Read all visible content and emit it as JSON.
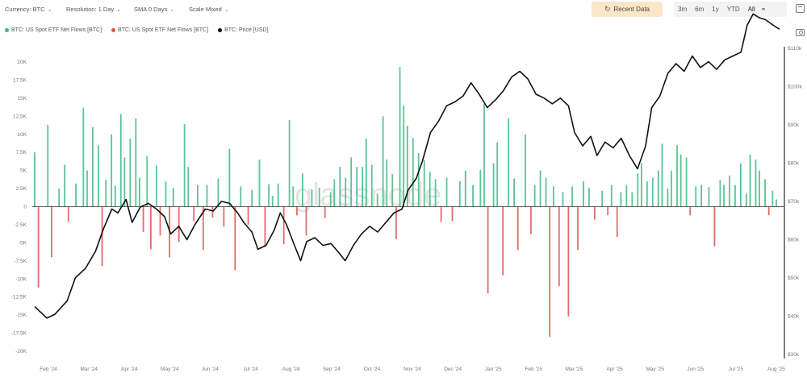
{
  "toolbar": {
    "currency": "Currency: BTC",
    "resolution": "Resolution: 1 Day",
    "sma": "SMA 0 Days",
    "scale": "Scale Mixed",
    "recent_data": "Recent Data",
    "ranges": [
      "3m",
      "6m",
      "1y",
      "YTD",
      "All"
    ]
  },
  "watermark": "glassnode",
  "colors": {
    "inflow": "#3fb886",
    "outflow": "#d9534f",
    "price": "#111111",
    "zero_line": "#333333",
    "recent_btn": "#fbe7c7"
  },
  "chart_data": {
    "type": "bar",
    "legend_placement": "top-left",
    "grid": false,
    "series": [
      {
        "name": "BTC: US Spot ETF Net Flows [BTC]",
        "kind": "bar",
        "sign": "positive"
      },
      {
        "name": "BTC: US Spot ETF Net Flows [BTC]",
        "kind": "bar",
        "sign": "negative"
      },
      {
        "name": "BTC: Price [USD]",
        "kind": "line",
        "axis": "right"
      }
    ],
    "x_ticks": [
      "Feb '24",
      "Mar '24",
      "Apr '24",
      "May '24",
      "Jun '24",
      "Jul '24",
      "Aug '24",
      "Sep '24",
      "Oct '24",
      "Nov '24",
      "Dec '24",
      "Jan '25",
      "Feb '25",
      "Mar '25",
      "Apr '25",
      "May '25",
      "Jun '25",
      "Jul '25",
      "Aug '25"
    ],
    "y_left": {
      "ylim": [
        -30000,
        20000
      ],
      "ticks": [
        20000,
        17500,
        15000,
        12500,
        10000,
        7500,
        5000,
        2500,
        0,
        -2500,
        -5000,
        -7500,
        -10000,
        -12500,
        -15000,
        -17500,
        -20000
      ],
      "tick_labels": [
        "20K",
        "17.5K",
        "15K",
        "12.5K",
        "10K",
        "7.5K",
        "5K",
        "2.5K",
        "0",
        "-2.5K",
        "-5K",
        "-7.5K",
        "-10K",
        "-12.5K",
        "-15K",
        "-17.5K",
        "-20K"
      ]
    },
    "y_right": {
      "ticks": [
        110000,
        100000,
        90000,
        80000,
        70000,
        60000,
        50000,
        40000,
        30000
      ],
      "tick_labels": [
        "$110k",
        "$100k",
        "$90k",
        "$80k",
        "$70k",
        "$60k",
        "$50k",
        "$40k",
        "$30k"
      ]
    },
    "flows": [
      {
        "x": 0.2,
        "v": 7500
      },
      {
        "x": 0.3,
        "v": -11200
      },
      {
        "x": 0.55,
        "v": 11300
      },
      {
        "x": 0.65,
        "v": -7000
      },
      {
        "x": 0.85,
        "v": 2500
      },
      {
        "x": 1.0,
        "v": 5800
      },
      {
        "x": 1.1,
        "v": -2100
      },
      {
        "x": 1.3,
        "v": 3200
      },
      {
        "x": 1.5,
        "v": 13700
      },
      {
        "x": 1.6,
        "v": 5000
      },
      {
        "x": 1.75,
        "v": 11000
      },
      {
        "x": 1.9,
        "v": 8500
      },
      {
        "x": 2.0,
        "v": -8200
      },
      {
        "x": 2.1,
        "v": 3700
      },
      {
        "x": 2.25,
        "v": 10000
      },
      {
        "x": 2.35,
        "v": 2900
      },
      {
        "x": 2.5,
        "v": 12800
      },
      {
        "x": 2.6,
        "v": 6800
      },
      {
        "x": 2.75,
        "v": 9400
      },
      {
        "x": 2.9,
        "v": 12200
      },
      {
        "x": 3.0,
        "v": 4000
      },
      {
        "x": 3.1,
        "v": -3500
      },
      {
        "x": 3.2,
        "v": 7000
      },
      {
        "x": 3.3,
        "v": -5900
      },
      {
        "x": 3.45,
        "v": 5700
      },
      {
        "x": 3.55,
        "v": -4000
      },
      {
        "x": 3.7,
        "v": 3500
      },
      {
        "x": 3.8,
        "v": -7000
      },
      {
        "x": 3.9,
        "v": 2600
      },
      {
        "x": 4.05,
        "v": -4900
      },
      {
        "x": 4.2,
        "v": 11400
      },
      {
        "x": 4.3,
        "v": 5500
      },
      {
        "x": 4.45,
        "v": -2000
      },
      {
        "x": 4.55,
        "v": 3000
      },
      {
        "x": 4.7,
        "v": -6000
      },
      {
        "x": 4.8,
        "v": 3000
      },
      {
        "x": 4.95,
        "v": -1500
      },
      {
        "x": 5.1,
        "v": 3900
      },
      {
        "x": 5.25,
        "v": -2800
      },
      {
        "x": 5.4,
        "v": 8000
      },
      {
        "x": 5.55,
        "v": -8800
      },
      {
        "x": 5.7,
        "v": 2800
      },
      {
        "x": 5.9,
        "v": -2500
      },
      {
        "x": 6.0,
        "v": 2300
      },
      {
        "x": 6.2,
        "v": 6500
      },
      {
        "x": 6.35,
        "v": -5600
      },
      {
        "x": 6.45,
        "v": 3100
      },
      {
        "x": 6.55,
        "v": 1500
      },
      {
        "x": 6.7,
        "v": 3200
      },
      {
        "x": 6.85,
        "v": -5200
      },
      {
        "x": 7.0,
        "v": 12000
      },
      {
        "x": 7.1,
        "v": 2800
      },
      {
        "x": 7.2,
        "v": -1200
      },
      {
        "x": 7.35,
        "v": 4600
      },
      {
        "x": 7.45,
        "v": -4000
      },
      {
        "x": 7.6,
        "v": 2400
      },
      {
        "x": 7.8,
        "v": 2600
      },
      {
        "x": 7.95,
        "v": -1600
      },
      {
        "x": 8.1,
        "v": 2000
      },
      {
        "x": 8.2,
        "v": 3800
      },
      {
        "x": 8.35,
        "v": 5500
      },
      {
        "x": 8.5,
        "v": 4000
      },
      {
        "x": 8.65,
        "v": 6800
      },
      {
        "x": 8.8,
        "v": 5500
      },
      {
        "x": 8.95,
        "v": 5500
      },
      {
        "x": 9.05,
        "v": 9400
      },
      {
        "x": 9.2,
        "v": 5800
      },
      {
        "x": 9.35,
        "v": 1800
      },
      {
        "x": 9.5,
        "v": 12500
      },
      {
        "x": 9.6,
        "v": 6500
      },
      {
        "x": 9.75,
        "v": 4500
      },
      {
        "x": 9.85,
        "v": -4500
      },
      {
        "x": 9.95,
        "v": 19300
      },
      {
        "x": 10.05,
        "v": 14000
      },
      {
        "x": 10.15,
        "v": 11200
      },
      {
        "x": 10.3,
        "v": 9500
      },
      {
        "x": 10.45,
        "v": 7400
      },
      {
        "x": 10.6,
        "v": 6400
      },
      {
        "x": 10.75,
        "v": 4800
      },
      {
        "x": 10.9,
        "v": 3800
      },
      {
        "x": 11.05,
        "v": -2100
      },
      {
        "x": 11.2,
        "v": 4000
      },
      {
        "x": 11.35,
        "v": -2000
      },
      {
        "x": 11.55,
        "v": 3500
      },
      {
        "x": 11.7,
        "v": 5000
      },
      {
        "x": 11.9,
        "v": 3000
      },
      {
        "x": 12.1,
        "v": 5100
      },
      {
        "x": 12.2,
        "v": 14200
      },
      {
        "x": 12.3,
        "v": -12000
      },
      {
        "x": 12.45,
        "v": 6000
      },
      {
        "x": 12.55,
        "v": 8900
      },
      {
        "x": 12.7,
        "v": -9500
      },
      {
        "x": 12.85,
        "v": 12200
      },
      {
        "x": 13.0,
        "v": 3900
      },
      {
        "x": 13.1,
        "v": -6000
      },
      {
        "x": 13.3,
        "v": 10000
      },
      {
        "x": 13.45,
        "v": -3800
      },
      {
        "x": 13.55,
        "v": 3000
      },
      {
        "x": 13.7,
        "v": 5000
      },
      {
        "x": 13.85,
        "v": 4000
      },
      {
        "x": 13.95,
        "v": -18000
      },
      {
        "x": 14.05,
        "v": 2800
      },
      {
        "x": 14.2,
        "v": -11000
      },
      {
        "x": 14.3,
        "v": 2000
      },
      {
        "x": 14.45,
        "v": -15200
      },
      {
        "x": 14.55,
        "v": 2800
      },
      {
        "x": 14.7,
        "v": -6000
      },
      {
        "x": 14.85,
        "v": 3500
      },
      {
        "x": 15.0,
        "v": 2600
      },
      {
        "x": 15.15,
        "v": -1800
      },
      {
        "x": 15.35,
        "v": 2200
      },
      {
        "x": 15.5,
        "v": -1200
      },
      {
        "x": 15.6,
        "v": 3000
      },
      {
        "x": 15.75,
        "v": -4200
      },
      {
        "x": 15.85,
        "v": 2000
      },
      {
        "x": 16.0,
        "v": 3000
      },
      {
        "x": 16.15,
        "v": 2000
      },
      {
        "x": 16.3,
        "v": 4600
      },
      {
        "x": 16.4,
        "v": 6000
      },
      {
        "x": 16.55,
        "v": 3500
      },
      {
        "x": 16.7,
        "v": 4000
      },
      {
        "x": 16.85,
        "v": 5000
      },
      {
        "x": 16.95,
        "v": 8700
      },
      {
        "x": 17.1,
        "v": 2500
      },
      {
        "x": 17.2,
        "v": 5000
      },
      {
        "x": 17.35,
        "v": 8500
      },
      {
        "x": 17.45,
        "v": 7200
      },
      {
        "x": 17.6,
        "v": 6800
      },
      {
        "x": 17.7,
        "v": -1200
      },
      {
        "x": 17.85,
        "v": 2800
      },
      {
        "x": 18.0,
        "v": 3000
      },
      {
        "x": 18.2,
        "v": 2700
      },
      {
        "x": 18.35,
        "v": -5500
      },
      {
        "x": 18.5,
        "v": 3700
      },
      {
        "x": 18.6,
        "v": 3000
      },
      {
        "x": 18.75,
        "v": 4300
      },
      {
        "x": 18.9,
        "v": 3000
      },
      {
        "x": 19.05,
        "v": 6000
      },
      {
        "x": 19.2,
        "v": 1800
      },
      {
        "x": 19.3,
        "v": 7200
      },
      {
        "x": 19.45,
        "v": 6500
      },
      {
        "x": 19.55,
        "v": 5000
      },
      {
        "x": 19.7,
        "v": 3800
      },
      {
        "x": 19.8,
        "v": -1200
      },
      {
        "x": 19.9,
        "v": 2200
      },
      {
        "x": 20.0,
        "v": 1000
      }
    ],
    "price": [
      {
        "x": 0.0,
        "p": 42500
      },
      {
        "x": 0.3,
        "p": 39500
      },
      {
        "x": 0.5,
        "p": 40500
      },
      {
        "x": 0.8,
        "p": 44000
      },
      {
        "x": 1.0,
        "p": 50000
      },
      {
        "x": 1.25,
        "p": 52500
      },
      {
        "x": 1.5,
        "p": 57000
      },
      {
        "x": 1.7,
        "p": 63000
      },
      {
        "x": 1.9,
        "p": 68000
      },
      {
        "x": 2.05,
        "p": 67000
      },
      {
        "x": 2.25,
        "p": 70500
      },
      {
        "x": 2.4,
        "p": 64500
      },
      {
        "x": 2.6,
        "p": 68500
      },
      {
        "x": 2.8,
        "p": 69500
      },
      {
        "x": 3.0,
        "p": 68000
      },
      {
        "x": 3.2,
        "p": 66000
      },
      {
        "x": 3.35,
        "p": 61500
      },
      {
        "x": 3.55,
        "p": 63500
      },
      {
        "x": 3.75,
        "p": 60000
      },
      {
        "x": 3.95,
        "p": 64000
      },
      {
        "x": 4.2,
        "p": 68000
      },
      {
        "x": 4.4,
        "p": 67500
      },
      {
        "x": 4.6,
        "p": 70000
      },
      {
        "x": 4.8,
        "p": 69500
      },
      {
        "x": 5.0,
        "p": 67000
      },
      {
        "x": 5.15,
        "p": 64500
      },
      {
        "x": 5.35,
        "p": 62000
      },
      {
        "x": 5.5,
        "p": 57500
      },
      {
        "x": 5.7,
        "p": 58500
      },
      {
        "x": 5.9,
        "p": 62500
      },
      {
        "x": 6.05,
        "p": 67000
      },
      {
        "x": 6.2,
        "p": 64000
      },
      {
        "x": 6.4,
        "p": 58500
      },
      {
        "x": 6.55,
        "p": 54500
      },
      {
        "x": 6.7,
        "p": 59500
      },
      {
        "x": 6.9,
        "p": 60500
      },
      {
        "x": 7.1,
        "p": 58500
      },
      {
        "x": 7.3,
        "p": 59000
      },
      {
        "x": 7.5,
        "p": 56500
      },
      {
        "x": 7.65,
        "p": 54500
      },
      {
        "x": 7.85,
        "p": 58500
      },
      {
        "x": 8.05,
        "p": 61500
      },
      {
        "x": 8.25,
        "p": 63500
      },
      {
        "x": 8.45,
        "p": 62000
      },
      {
        "x": 8.65,
        "p": 64500
      },
      {
        "x": 8.85,
        "p": 67000
      },
      {
        "x": 9.05,
        "p": 68000
      },
      {
        "x": 9.2,
        "p": 73000
      },
      {
        "x": 9.4,
        "p": 76000
      },
      {
        "x": 9.55,
        "p": 80500
      },
      {
        "x": 9.75,
        "p": 88000
      },
      {
        "x": 9.95,
        "p": 91000
      },
      {
        "x": 10.15,
        "p": 95000
      },
      {
        "x": 10.35,
        "p": 96000
      },
      {
        "x": 10.55,
        "p": 97500
      },
      {
        "x": 10.75,
        "p": 101000
      },
      {
        "x": 10.95,
        "p": 98000
      },
      {
        "x": 11.15,
        "p": 94500
      },
      {
        "x": 11.35,
        "p": 96500
      },
      {
        "x": 11.55,
        "p": 99000
      },
      {
        "x": 11.75,
        "p": 102500
      },
      {
        "x": 11.95,
        "p": 104000
      },
      {
        "x": 12.15,
        "p": 102000
      },
      {
        "x": 12.35,
        "p": 98000
      },
      {
        "x": 12.55,
        "p": 97000
      },
      {
        "x": 12.75,
        "p": 95500
      },
      {
        "x": 12.95,
        "p": 97000
      },
      {
        "x": 13.15,
        "p": 95000
      },
      {
        "x": 13.3,
        "p": 88000
      },
      {
        "x": 13.5,
        "p": 84500
      },
      {
        "x": 13.7,
        "p": 87000
      },
      {
        "x": 13.85,
        "p": 82000
      },
      {
        "x": 14.05,
        "p": 85500
      },
      {
        "x": 14.25,
        "p": 84000
      },
      {
        "x": 14.45,
        "p": 86500
      },
      {
        "x": 14.65,
        "p": 82000
      },
      {
        "x": 14.85,
        "p": 78500
      },
      {
        "x": 15.05,
        "p": 84500
      },
      {
        "x": 15.2,
        "p": 94500
      },
      {
        "x": 15.4,
        "p": 97500
      },
      {
        "x": 15.6,
        "p": 103500
      },
      {
        "x": 15.8,
        "p": 106000
      },
      {
        "x": 16.0,
        "p": 104000
      },
      {
        "x": 16.2,
        "p": 108000
      },
      {
        "x": 16.4,
        "p": 105000
      },
      {
        "x": 16.6,
        "p": 106500
      },
      {
        "x": 16.8,
        "p": 104500
      },
      {
        "x": 17.0,
        "p": 107000
      },
      {
        "x": 17.2,
        "p": 108000
      },
      {
        "x": 17.4,
        "p": 109000
      },
      {
        "x": 17.55,
        "p": 116000
      },
      {
        "x": 17.7,
        "p": 119000
      },
      {
        "x": 17.85,
        "p": 118000
      },
      {
        "x": 18.0,
        "p": 117500
      },
      {
        "x": 18.2,
        "p": 116000
      },
      {
        "x": 18.35,
        "p": 115000
      }
    ]
  }
}
